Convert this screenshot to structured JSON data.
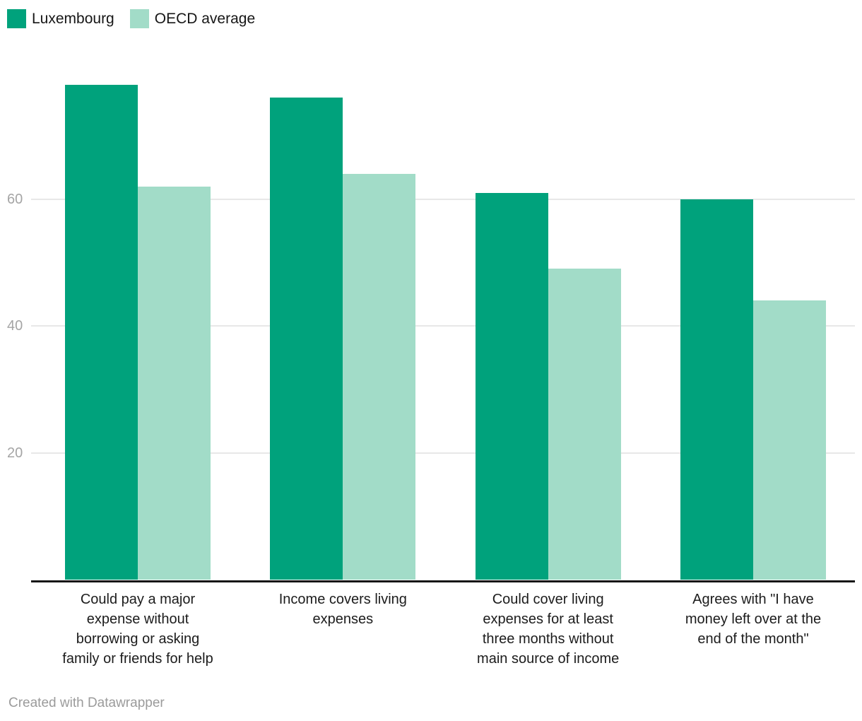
{
  "chart_data": {
    "type": "bar",
    "title": "",
    "categories": [
      "Could pay a major expense without borrowing or asking family or friends for help",
      "Income covers living expenses",
      "Could cover living expenses for at least three months without main source of income",
      "Agrees with \"I have money left over at the end of the month\""
    ],
    "categories_wrapped": [
      [
        "Could pay a major",
        "expense without",
        "borrowing or asking",
        "family or friends for help"
      ],
      [
        "Income covers living",
        "expenses"
      ],
      [
        "Could cover living",
        "expenses for at least",
        "three months without",
        "main source of income"
      ],
      [
        "Agrees with \"I have",
        "money left over at the",
        "end of the month\""
      ]
    ],
    "series": [
      {
        "name": "Luxembourg",
        "color": "#00a27c",
        "values": [
          78,
          76,
          61,
          60
        ]
      },
      {
        "name": "OECD average",
        "color": "#a2dcc8",
        "values": [
          62,
          64,
          49,
          44
        ]
      }
    ],
    "yticks": [
      20,
      40,
      60
    ],
    "ylim": [
      0,
      80
    ],
    "xlabel": "",
    "ylabel": "",
    "grid": "horizontal",
    "legend_position": "top-left"
  },
  "colors": {
    "luxembourg": "#00a27c",
    "oecd_average": "#a2dcc8",
    "axis": "#161616",
    "gridline": "#e8e8e8",
    "tick_label": "#a5a5a5",
    "category_label": "#1c1c1c",
    "credit": "#9b9b9b"
  },
  "footer": {
    "credit": "Created with Datawrapper"
  }
}
